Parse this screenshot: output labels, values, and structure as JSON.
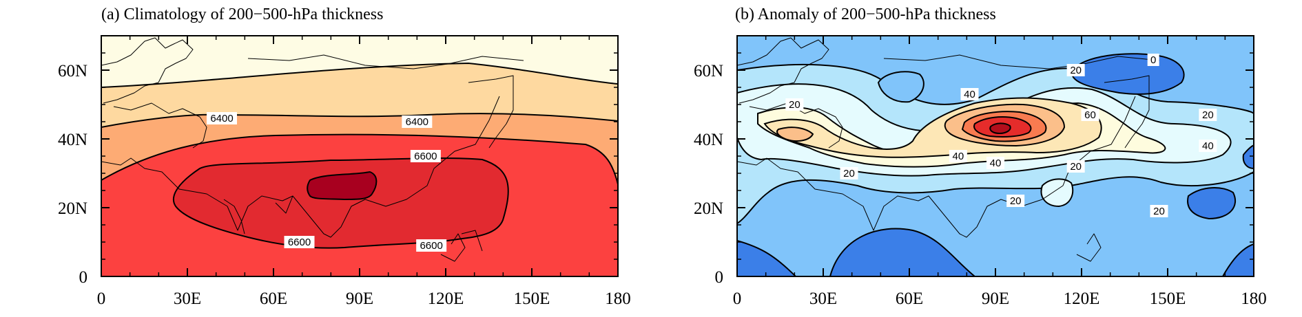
{
  "figure": {
    "panels": [
      {
        "title": "(a) Climatology of 200−500-hPa thickness"
      },
      {
        "title": "(b) Anomaly of 200−500-hPa thickness"
      }
    ]
  },
  "chart_data": [
    {
      "type": "heatmap",
      "title": "(a) Climatology of 200−500-hPa thickness",
      "x_ticks": [
        "0",
        "30E",
        "60E",
        "90E",
        "120E",
        "150E",
        "180"
      ],
      "y_ticks": [
        "0",
        "20N",
        "40N",
        "60N"
      ],
      "xlim": [
        0,
        180
      ],
      "ylim": [
        0,
        70
      ],
      "contour_labels": [
        {
          "text": "6400",
          "lon": 42,
          "lat": 46
        },
        {
          "text": "6400",
          "lon": 110,
          "lat": 45
        },
        {
          "text": "6600",
          "lon": 113,
          "lat": 35
        },
        {
          "text": "6600",
          "lon": 69,
          "lat": 10
        },
        {
          "text": "6600",
          "lon": 115,
          "lat": 9
        }
      ],
      "fill_colors": [
        "#fefce4",
        "#fed9a0",
        "#fdab74",
        "#fc4140",
        "#e22a30",
        "#a8001f"
      ]
    },
    {
      "type": "heatmap",
      "title": "(b) Anomaly of 200−500-hPa thickness",
      "x_ticks": [
        "0",
        "30E",
        "60E",
        "90E",
        "120E",
        "150E",
        "180"
      ],
      "y_ticks": [
        "0",
        "20N",
        "40N",
        "60N"
      ],
      "xlim": [
        0,
        180
      ],
      "ylim": [
        0,
        70
      ],
      "contour_labels": [
        {
          "text": "0",
          "lon": 145,
          "lat": 63
        },
        {
          "text": "20",
          "lon": 118,
          "lat": 60
        },
        {
          "text": "20",
          "lon": 20,
          "lat": 50
        },
        {
          "text": "40",
          "lon": 81,
          "lat": 53
        },
        {
          "text": "60",
          "lon": 123,
          "lat": 47
        },
        {
          "text": "20",
          "lon": 164,
          "lat": 47
        },
        {
          "text": "40",
          "lon": 77,
          "lat": 35
        },
        {
          "text": "40",
          "lon": 90,
          "lat": 33
        },
        {
          "text": "40",
          "lon": 164,
          "lat": 38
        },
        {
          "text": "20",
          "lon": 118,
          "lat": 32
        },
        {
          "text": "20",
          "lon": 39,
          "lat": 30
        },
        {
          "text": "20",
          "lon": 97,
          "lat": 22
        },
        {
          "text": "20",
          "lon": 147,
          "lat": 19
        }
      ],
      "fill_colors": [
        "#3b7fe8",
        "#80c4fa",
        "#b4e5fb",
        "#e5fbfe",
        "#fefcde",
        "#fde7b6",
        "#fbbf8a",
        "#f87b50",
        "#e52c2b",
        "#b30e1c"
      ]
    }
  ]
}
